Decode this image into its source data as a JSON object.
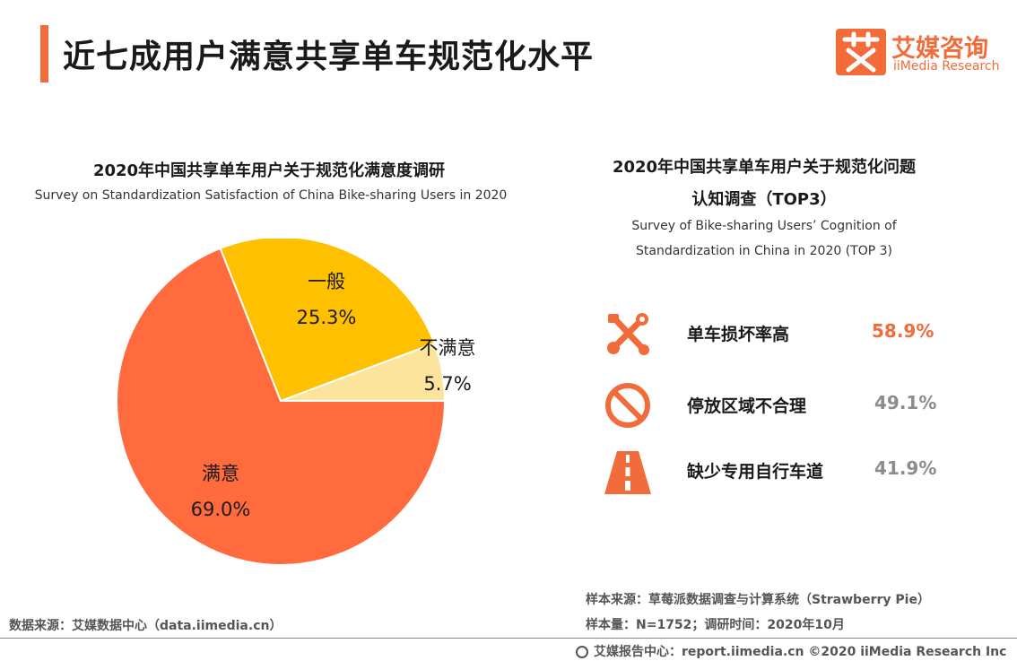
{
  "header": {
    "title": "近七成用户满意共享单车规范化水平",
    "logo_cn": "艾媒咨询",
    "logo_en": "iiMedia Research",
    "accent_color": "#f26b3a"
  },
  "left_chart": {
    "title": "2020年中国共享单车用户关于规范化满意度调研",
    "subtitle": "Survey on Standardization Satisfaction of China Bike-sharing  Users in 2020"
  },
  "right_chart": {
    "title_line1": "2020年中国共享单车用户关于规范化问题",
    "title_line2": "认知调查（TOP3）",
    "subtitle_line1": "Survey of Bike-sharing Users’   Cognition of",
    "subtitle_line2": "Standardization in China in 2020 (TOP 3)"
  },
  "chart_data": [
    {
      "type": "pie",
      "categories": [
        "满意",
        "一般",
        "不满意"
      ],
      "values": [
        69.0,
        25.3,
        5.7
      ],
      "value_labels": [
        "69.0%",
        "25.3%",
        "5.7%"
      ],
      "colors": [
        "#ff6b3d",
        "#ffc000",
        "#fde49c"
      ],
      "legend": "none"
    },
    {
      "type": "table",
      "categories": [
        "单车损坏率高",
        "停放区域不合理",
        "缺少专用自行车道"
      ],
      "values": [
        58.9,
        49.1,
        41.9
      ],
      "value_labels": [
        "58.9%",
        "49.1%",
        "41.9%"
      ],
      "icons": [
        "tools-icon",
        "no-entry-icon",
        "road-icon"
      ]
    }
  ],
  "footer": {
    "source_left": "数据来源：艾媒数据中心（data.iimedia.cn）",
    "sample_source": "样本来源：草莓派数据调查与计算系统（Strawberry Pie）",
    "sample_size": "样本量：N=1752；调研时间：2020年10月",
    "copyright": "艾媒报告中心：report.iimedia.cn ©2020  iiMedia Research  Inc"
  }
}
